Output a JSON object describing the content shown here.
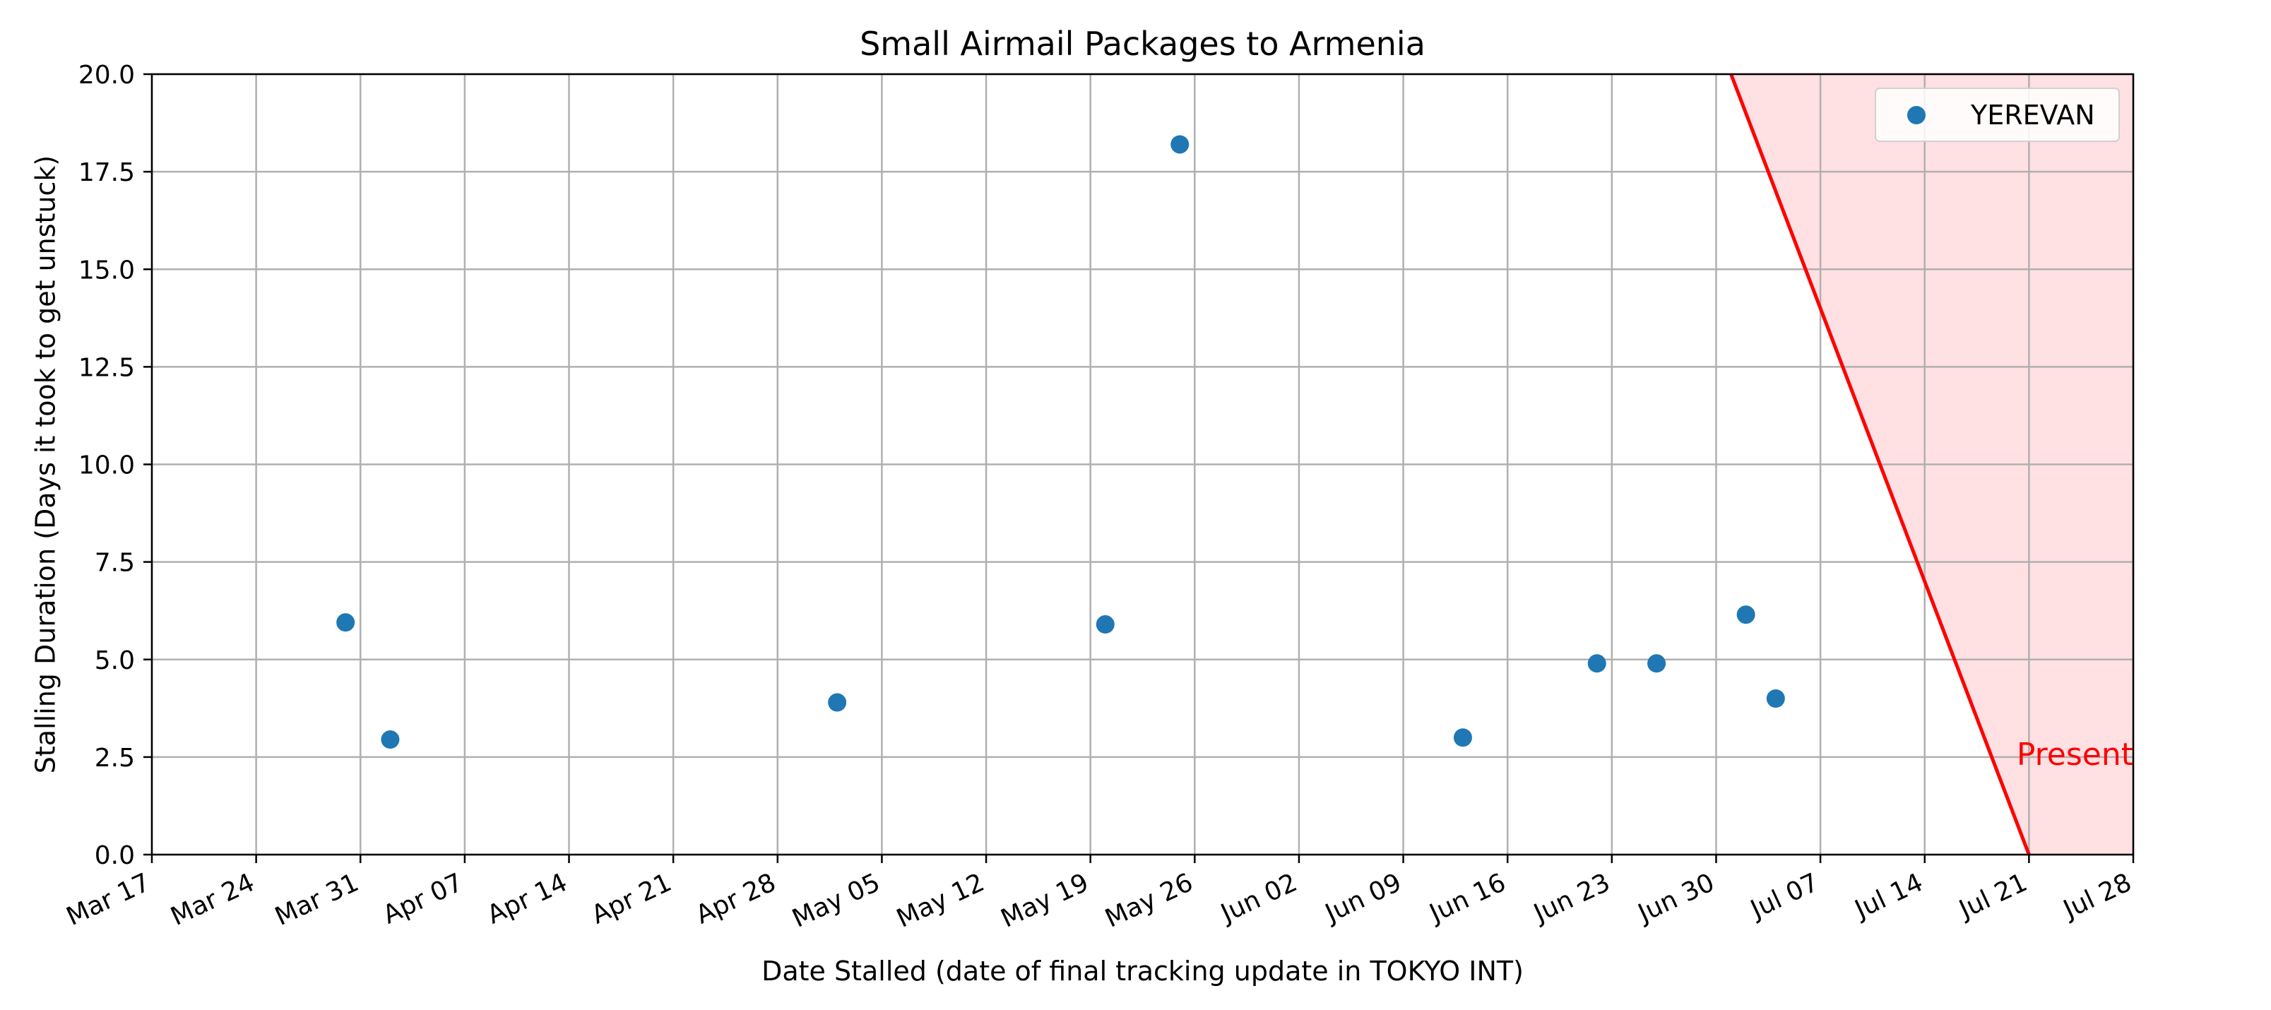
{
  "chart_data": {
    "type": "scatter",
    "title": "Small Airmail Packages to Armenia",
    "xlabel": "Date Stalled (date of final tracking update in TOKYO INT)",
    "ylabel": "Stalling Duration (Days it took to get unstuck)",
    "xlim": [
      "2024-03-17",
      "2024-07-28"
    ],
    "ylim": [
      0,
      20
    ],
    "x_ticks": [
      {
        "date": "2024-03-17",
        "label": "Mar 17"
      },
      {
        "date": "2024-03-24",
        "label": "Mar 24"
      },
      {
        "date": "2024-03-31",
        "label": "Mar 31"
      },
      {
        "date": "2024-04-07",
        "label": "Apr 07"
      },
      {
        "date": "2024-04-14",
        "label": "Apr 14"
      },
      {
        "date": "2024-04-21",
        "label": "Apr 21"
      },
      {
        "date": "2024-04-28",
        "label": "Apr 28"
      },
      {
        "date": "2024-05-05",
        "label": "May 05"
      },
      {
        "date": "2024-05-12",
        "label": "May 12"
      },
      {
        "date": "2024-05-19",
        "label": "May 19"
      },
      {
        "date": "2024-05-26",
        "label": "May 26"
      },
      {
        "date": "2024-06-02",
        "label": "Jun 02"
      },
      {
        "date": "2024-06-09",
        "label": "Jun 09"
      },
      {
        "date": "2024-06-16",
        "label": "Jun 16"
      },
      {
        "date": "2024-06-23",
        "label": "Jun 23"
      },
      {
        "date": "2024-06-30",
        "label": "Jun 30"
      },
      {
        "date": "2024-07-07",
        "label": "Jul 07"
      },
      {
        "date": "2024-07-14",
        "label": "Jul 14"
      },
      {
        "date": "2024-07-21",
        "label": "Jul 21"
      },
      {
        "date": "2024-07-28",
        "label": "Jul 28"
      }
    ],
    "y_ticks": [
      "0.0",
      "2.5",
      "5.0",
      "7.5",
      "10.0",
      "12.5",
      "15.0",
      "17.5",
      "20.0"
    ],
    "grid": true,
    "legend_position": "top-right",
    "series": [
      {
        "name": "YEREVAN",
        "color": "#1f77b4",
        "points": [
          {
            "x": "2024-03-30",
            "y": 5.95
          },
          {
            "x": "2024-04-02",
            "y": 2.95
          },
          {
            "x": "2024-05-02",
            "y": 3.9
          },
          {
            "x": "2024-05-20",
            "y": 5.9
          },
          {
            "x": "2024-05-25",
            "y": 18.2
          },
          {
            "x": "2024-06-13",
            "y": 3.0
          },
          {
            "x": "2024-06-22",
            "y": 4.9
          },
          {
            "x": "2024-06-26",
            "y": 4.9
          },
          {
            "x": "2024-07-02",
            "y": 6.15
          },
          {
            "x": "2024-07-04",
            "y": 4.0
          }
        ]
      }
    ],
    "annotations": [
      {
        "type": "present-cutoff",
        "text": "Present",
        "color": "#ff0000",
        "fill_color": "#ffe0e3",
        "line": [
          {
            "x": "2024-07-01",
            "y": 20
          },
          {
            "x": "2024-07-21",
            "y": 0
          }
        ]
      }
    ]
  }
}
